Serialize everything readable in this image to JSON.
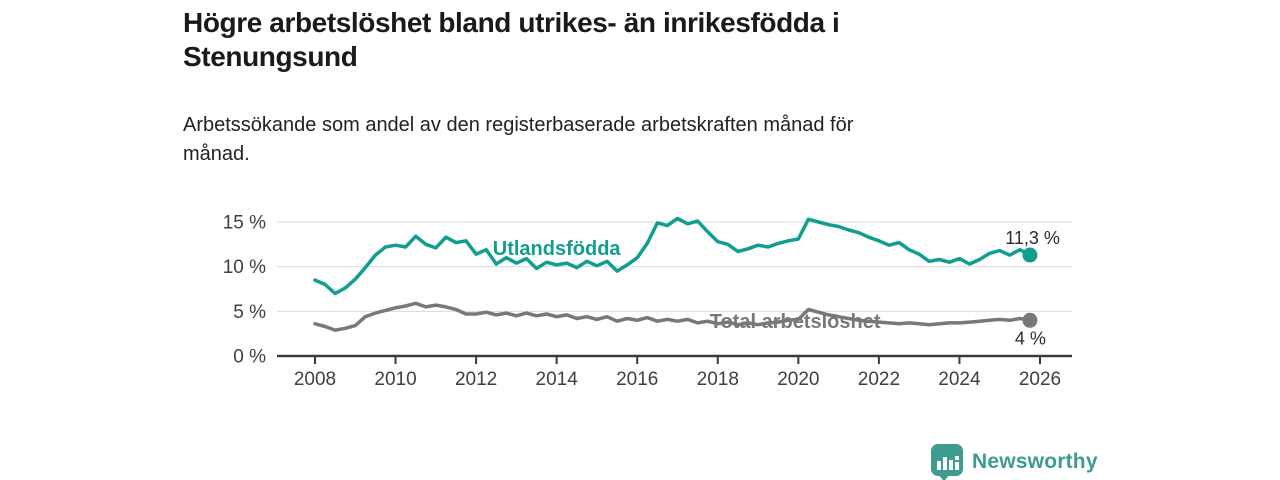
{
  "title": {
    "line1": "Högre arbetslöshet bland utrikes- än inrikesfödda i",
    "line2": "Stenungsund"
  },
  "subtitle": {
    "line1": "Arbetssökande som andel av den registerbaserade arbetskraften månad för",
    "line2": "månad."
  },
  "branding": {
    "logo_text": "Newsworthy",
    "logo_icon": "newsworthy-speech-bubble-bar-chart-icon",
    "color": "#3d9b90"
  },
  "chart_data": {
    "type": "line",
    "title": "Högre arbetslöshet bland utrikes- än inrikesfödda i Stenungsund",
    "subtitle": "Arbetssökande som andel av den registerbaserade arbetskraften månad för månad.",
    "grid": true,
    "grid_color": "#d9d9d9",
    "axis_color": "#3a3a3a",
    "legend_position": "inline-labels",
    "x_axis": {
      "tick_labels": [
        "2008",
        "2010",
        "2012",
        "2014",
        "2016",
        "2018",
        "2020",
        "2022",
        "2024",
        "2026"
      ],
      "range": [
        2007.05,
        2026.8
      ]
    },
    "y_axis": {
      "unit": "%",
      "range": [
        0,
        16.8
      ],
      "ticks": [
        {
          "value": 0,
          "label": "0 %"
        },
        {
          "value": 5,
          "label": "5 %"
        },
        {
          "value": 10,
          "label": "10 %"
        },
        {
          "value": 15,
          "label": "15 %"
        }
      ]
    },
    "series": [
      {
        "id": "utlandsfodda",
        "name": "Utlandsfödda",
        "color": "#119e8e",
        "end_label": "11,3 %",
        "end_label_offset": {
          "dx": 30,
          "dy": -11
        },
        "label_anchor": {
          "x": 2014.0,
          "y": 12.1
        },
        "x_start": 2008.0,
        "x_step": 0.25,
        "values": [
          8.5,
          8.0,
          7.0,
          7.6,
          8.6,
          9.9,
          11.3,
          12.2,
          12.4,
          12.2,
          13.4,
          12.5,
          12.1,
          13.3,
          12.7,
          12.9,
          11.4,
          11.9,
          10.3,
          11.0,
          10.4,
          10.9,
          9.8,
          10.5,
          10.2,
          10.4,
          9.9,
          10.6,
          10.1,
          10.6,
          9.5,
          10.2,
          11.0,
          12.6,
          14.9,
          14.6,
          15.4,
          14.8,
          15.1,
          13.9,
          12.8,
          12.5,
          11.7,
          12.0,
          12.4,
          12.2,
          12.6,
          12.9,
          13.1,
          15.3,
          15.0,
          14.7,
          14.5,
          14.1,
          13.8,
          13.3,
          12.9,
          12.4,
          12.7,
          11.9,
          11.4,
          10.6,
          10.8,
          10.5,
          10.9,
          10.3,
          10.8,
          11.5,
          11.8,
          11.3,
          11.9,
          11.3
        ]
      },
      {
        "id": "total",
        "name": "Total arbetslöshet",
        "color": "#77787a",
        "end_label": "4 %",
        "end_label_offset": {
          "dx": 16,
          "dy": 24
        },
        "label_anchor": {
          "x": 2019.92,
          "y": 3.9
        },
        "x_start": 2008.0,
        "x_step": 0.25,
        "values": [
          3.6,
          3.3,
          2.9,
          3.1,
          3.4,
          4.4,
          4.8,
          5.1,
          5.4,
          5.6,
          5.9,
          5.5,
          5.7,
          5.5,
          5.2,
          4.7,
          4.7,
          4.9,
          4.6,
          4.8,
          4.5,
          4.8,
          4.5,
          4.7,
          4.4,
          4.6,
          4.2,
          4.4,
          4.1,
          4.4,
          3.9,
          4.2,
          4.0,
          4.3,
          3.9,
          4.1,
          3.9,
          4.1,
          3.7,
          3.9,
          3.6,
          3.8,
          3.5,
          3.7,
          3.5,
          3.7,
          3.8,
          4.0,
          4.1,
          5.2,
          4.9,
          4.6,
          4.4,
          4.2,
          4.0,
          3.9,
          3.8,
          3.7,
          3.6,
          3.7,
          3.6,
          3.5,
          3.6,
          3.7,
          3.7,
          3.8,
          3.9,
          4.0,
          4.1,
          4.0,
          4.2,
          4.0
        ]
      }
    ]
  }
}
